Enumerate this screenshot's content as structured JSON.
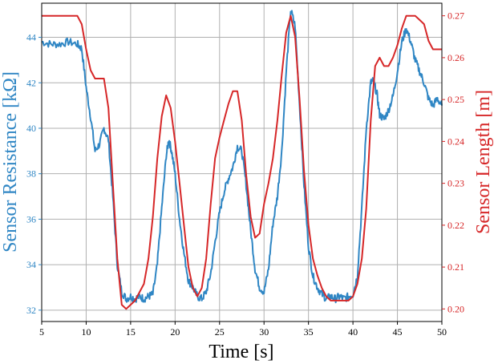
{
  "chart_data": {
    "type": "line",
    "title": "",
    "xlabel": "Time [s]",
    "ylabel_left": "Sensor Resistance [kΩ]",
    "ylabel_right": "Sensor Length [m]",
    "xlim": [
      5,
      50
    ],
    "ylim_left": [
      31.5,
      45.5
    ],
    "ylim_right": [
      0.197,
      0.273
    ],
    "x_ticks": [
      5,
      10,
      15,
      20,
      25,
      30,
      35,
      40,
      45,
      50
    ],
    "y_ticks_left": [
      32,
      34,
      36,
      38,
      40,
      42,
      44
    ],
    "y_ticks_right": [
      0.2,
      0.21,
      0.22,
      0.23,
      0.24,
      0.25,
      0.26,
      0.27
    ],
    "y_tick_labels_right": [
      "0.20",
      "0.21",
      "0.22",
      "0.23",
      "0.24",
      "0.25",
      "0.26",
      "0.27"
    ],
    "grid": true,
    "colors": {
      "resistance": "#2f86c4",
      "length": "#d62728"
    },
    "series": [
      {
        "axis": "left",
        "color": "#2f86c4",
        "x": [
          5,
          6,
          7,
          8,
          9,
          9.5,
          10,
          10.5,
          11,
          11.5,
          12,
          12.5,
          13,
          13.5,
          14,
          14.5,
          15,
          15.5,
          16,
          16.5,
          17,
          17.5,
          18,
          18.5,
          19,
          19.3,
          19.6,
          20,
          20.5,
          21,
          21.5,
          22,
          22.5,
          23,
          23.5,
          24,
          24.5,
          25,
          25.5,
          26,
          26.5,
          27,
          27.5,
          28,
          28.5,
          29,
          29.5,
          30,
          30.5,
          31,
          31.5,
          32,
          32.5,
          33,
          33.5,
          34,
          34.5,
          35,
          35.5,
          36,
          36.5,
          37,
          37.5,
          38,
          38.5,
          39,
          39.5,
          40,
          40.5,
          41,
          41.5,
          42,
          42.3,
          42.7,
          43,
          43.5,
          44,
          44.5,
          45,
          45.5,
          46,
          46.5,
          47,
          47.5,
          48,
          48.5,
          49,
          49.5,
          50
        ],
        "y": [
          43.8,
          43.7,
          43.7,
          43.8,
          43.7,
          43.5,
          41.8,
          40.5,
          39.0,
          39.3,
          40.0,
          39.5,
          37.0,
          34.0,
          32.8,
          32.5,
          32.6,
          32.5,
          32.6,
          32.5,
          32.6,
          32.7,
          34.0,
          36.5,
          38.8,
          39.5,
          39.0,
          38.0,
          36.0,
          34.5,
          33.3,
          33.0,
          32.6,
          32.5,
          32.8,
          33.6,
          35.0,
          36.3,
          37.2,
          37.8,
          38.3,
          39.2,
          39.0,
          37.5,
          35.5,
          33.8,
          33.0,
          32.8,
          33.8,
          35.8,
          37.0,
          39.0,
          42.5,
          45.2,
          44.5,
          41.0,
          37.5,
          34.8,
          33.5,
          33.0,
          32.7,
          32.5,
          32.6,
          32.5,
          32.6,
          32.5,
          32.6,
          32.7,
          33.5,
          36.5,
          40.0,
          42.0,
          42.1,
          41.5,
          40.6,
          40.4,
          40.8,
          41.4,
          42.5,
          43.8,
          44.4,
          43.8,
          43.0,
          42.5,
          42.0,
          41.3,
          41.0,
          41.3,
          41.0
        ]
      },
      {
        "axis": "right",
        "color": "#d62728",
        "x": [
          5,
          6,
          7,
          8,
          9,
          9.5,
          10,
          10.5,
          11,
          11.5,
          12,
          12.5,
          13,
          13.5,
          14,
          14.5,
          15,
          15.5,
          16,
          16.5,
          17,
          17.5,
          18,
          18.5,
          19,
          19.5,
          20,
          20.5,
          21,
          21.5,
          22,
          22.5,
          23,
          23.5,
          24,
          24.5,
          25,
          25.5,
          26,
          26.5,
          27,
          27.5,
          28,
          28.5,
          29,
          29.5,
          30,
          30.5,
          31,
          31.5,
          32,
          32.5,
          33,
          33.5,
          34,
          34.5,
          35,
          35.5,
          36,
          36.5,
          37,
          37.5,
          38,
          38.5,
          39,
          39.5,
          40,
          40.5,
          41,
          41.5,
          42,
          42.5,
          43,
          43.5,
          44,
          44.5,
          45,
          45.5,
          46,
          46.5,
          47,
          47.5,
          48,
          48.5,
          49,
          49.5,
          50
        ],
        "y": [
          0.27,
          0.27,
          0.27,
          0.27,
          0.27,
          0.268,
          0.262,
          0.257,
          0.255,
          0.255,
          0.255,
          0.248,
          0.23,
          0.212,
          0.201,
          0.2,
          0.201,
          0.202,
          0.204,
          0.206,
          0.212,
          0.222,
          0.236,
          0.246,
          0.251,
          0.248,
          0.24,
          0.23,
          0.22,
          0.21,
          0.205,
          0.203,
          0.205,
          0.212,
          0.225,
          0.236,
          0.241,
          0.245,
          0.249,
          0.252,
          0.252,
          0.245,
          0.232,
          0.222,
          0.217,
          0.218,
          0.225,
          0.23,
          0.236,
          0.245,
          0.256,
          0.266,
          0.27,
          0.265,
          0.25,
          0.233,
          0.22,
          0.212,
          0.208,
          0.205,
          0.203,
          0.202,
          0.202,
          0.202,
          0.202,
          0.202,
          0.203,
          0.206,
          0.212,
          0.224,
          0.245,
          0.258,
          0.26,
          0.258,
          0.258,
          0.26,
          0.263,
          0.267,
          0.27,
          0.27,
          0.27,
          0.269,
          0.268,
          0.264,
          0.262,
          0.262,
          0.262
        ]
      }
    ]
  }
}
